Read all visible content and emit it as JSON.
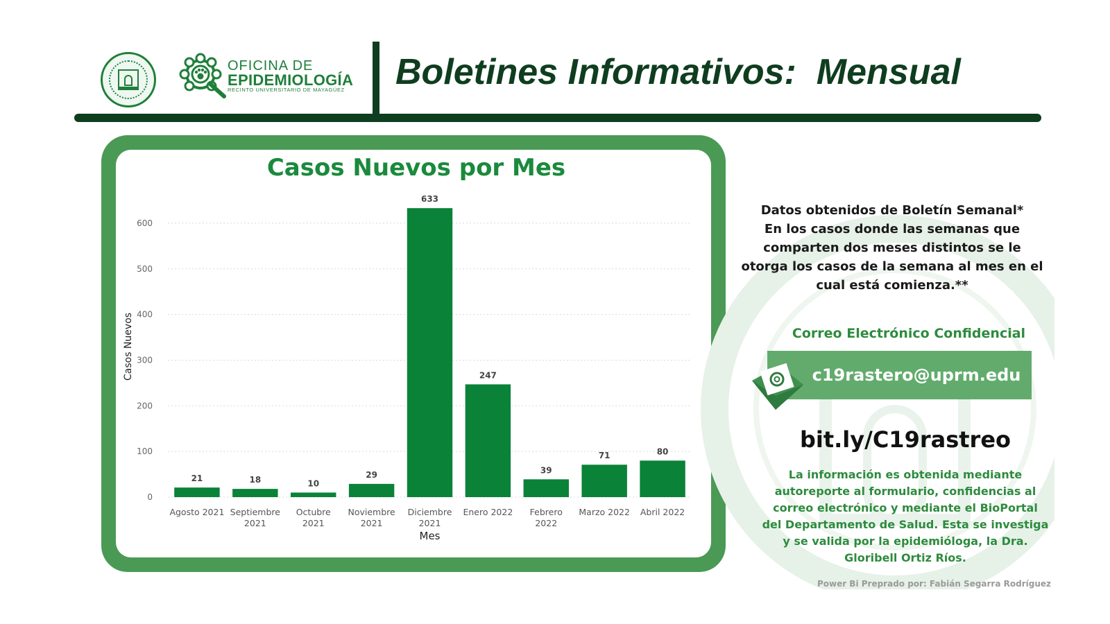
{
  "header": {
    "title": "Boletines Informativos:  Mensual",
    "logo_line1": "OFICINA DE",
    "logo_line2": "EPIDEMIOLOGÍA",
    "logo_line3": "RECINTO UNIVERSITARIO DE MAYAGÜEZ"
  },
  "colors": {
    "dark_green": "#0f3d1f",
    "bar_green": "#0a8238",
    "frame_green": "#4a9a55",
    "accent_green": "#2e8b3e"
  },
  "chart_data": {
    "type": "bar",
    "title": "Casos Nuevos por Mes",
    "xlabel": "Mes",
    "ylabel": "Casos Nuevos",
    "categories": [
      [
        "Agosto 2021"
      ],
      [
        "Septiembre",
        "2021"
      ],
      [
        "Octubre",
        "2021"
      ],
      [
        "Noviembre",
        "2021"
      ],
      [
        "Diciembre",
        "2021"
      ],
      [
        "Enero 2022"
      ],
      [
        "Febrero",
        "2022"
      ],
      [
        "Marzo 2022"
      ],
      [
        "Abril 2022"
      ]
    ],
    "values": [
      21,
      18,
      10,
      29,
      633,
      247,
      39,
      71,
      80
    ],
    "yticks": [
      0,
      100,
      200,
      300,
      400,
      500,
      600
    ],
    "ylim": [
      0,
      650
    ],
    "grid": true,
    "data_labels": true
  },
  "panel": {
    "note": "Datos obtenidos de Boletín Semanal*\nEn los casos donde las semanas que\ncomparten dos meses distintos se le\notorga los casos de la semana al mes en el\ncual está comienza.**",
    "email_title": "Correo Electrónico Confidencial",
    "email": "c19rastero@uprm.edu",
    "link": "bit.ly/C19rastreo",
    "info": "La información es obtenida mediante\nautoreporte al formulario, confidencias al\ncorreo electrónico y mediante el BioPortal\ndel Departamento de Salud. Esta se investiga\ny se valida por la epidemióloga, la Dra.\nGloribell Ortiz Ríos.",
    "credit": "Power Bi Preprado por: Fabián Segarra Rodríguez"
  }
}
